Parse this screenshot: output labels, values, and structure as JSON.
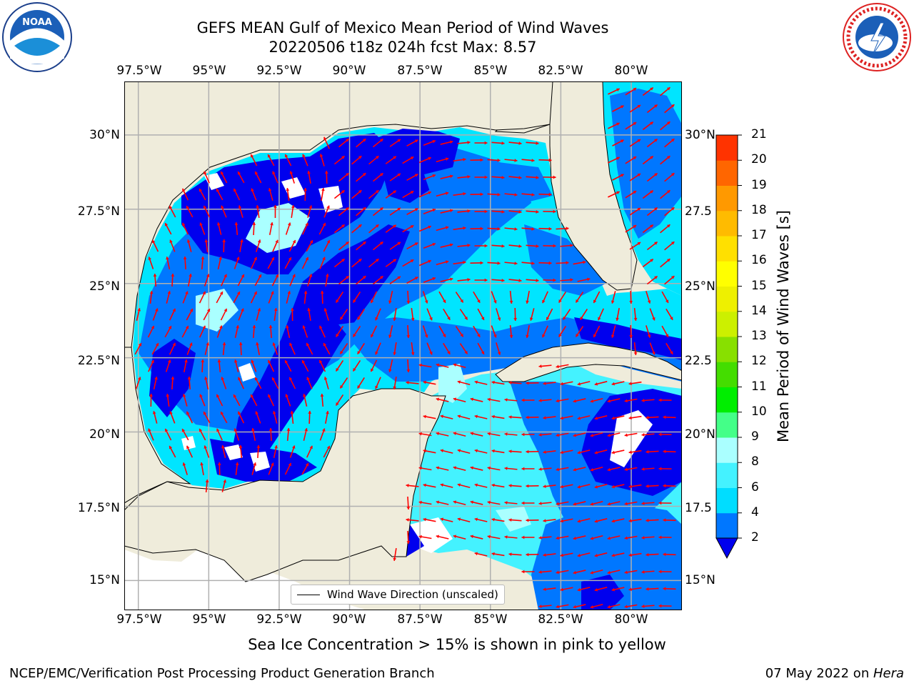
{
  "title": {
    "line1": "GEFS MEAN Gulf of Mexico Mean Period of Wind Waves",
    "line2": "20220506 t18z 024h fcst   Max: 8.57"
  },
  "map": {
    "lon_labels": [
      "97.5°W",
      "95°W",
      "92.5°W",
      "90°W",
      "87.5°W",
      "85°W",
      "82.5°W",
      "80°W"
    ],
    "lat_labels_left": [
      "30°N",
      "27.5°N",
      "25°N",
      "22.5°N",
      "20°N",
      "17.5°N",
      "15°N"
    ],
    "lat_labels_right": [
      "30°N",
      "27.5",
      "25°N",
      "22.5",
      "20°N",
      "17.5",
      "15°N"
    ],
    "lon_range": [
      -98,
      -78.2
    ],
    "lat_range": [
      14,
      31.8
    ],
    "land_color": "#efecdb",
    "vector_color": "#ff0000",
    "legend_label": "Wind Wave Direction (unscaled)"
  },
  "colorbar": {
    "title": "Mean Period of Wind Waves [s]",
    "ticks": [
      "2",
      "4",
      "6",
      "8",
      "9",
      "10",
      "11",
      "12",
      "13",
      "14",
      "15",
      "16",
      "17",
      "18",
      "19",
      "20",
      "21"
    ],
    "colors": [
      "#0077ff",
      "#00ddff",
      "#44f2ff",
      "#aaffff",
      "#44ff88",
      "#00ee00",
      "#44dd00",
      "#88e000",
      "#ccf000",
      "#eef000",
      "#ffff00",
      "#ffe000",
      "#ffbb00",
      "#ff9900",
      "#ff6600",
      "#ff3300",
      "#ff0000"
    ],
    "under_color": "#0000ee"
  },
  "notes": {
    "sea_ice": "Sea Ice Concentration > 15% is shown in pink to yellow"
  },
  "footer": {
    "left": "NCEP/EMC/Verification Post Processing Product Generation Branch",
    "date": "07 May 2022 on ",
    "machine": "Hera"
  },
  "logos": {
    "noaa": "NOAA",
    "nws": "NATIONAL WEATHER SERVICE"
  }
}
